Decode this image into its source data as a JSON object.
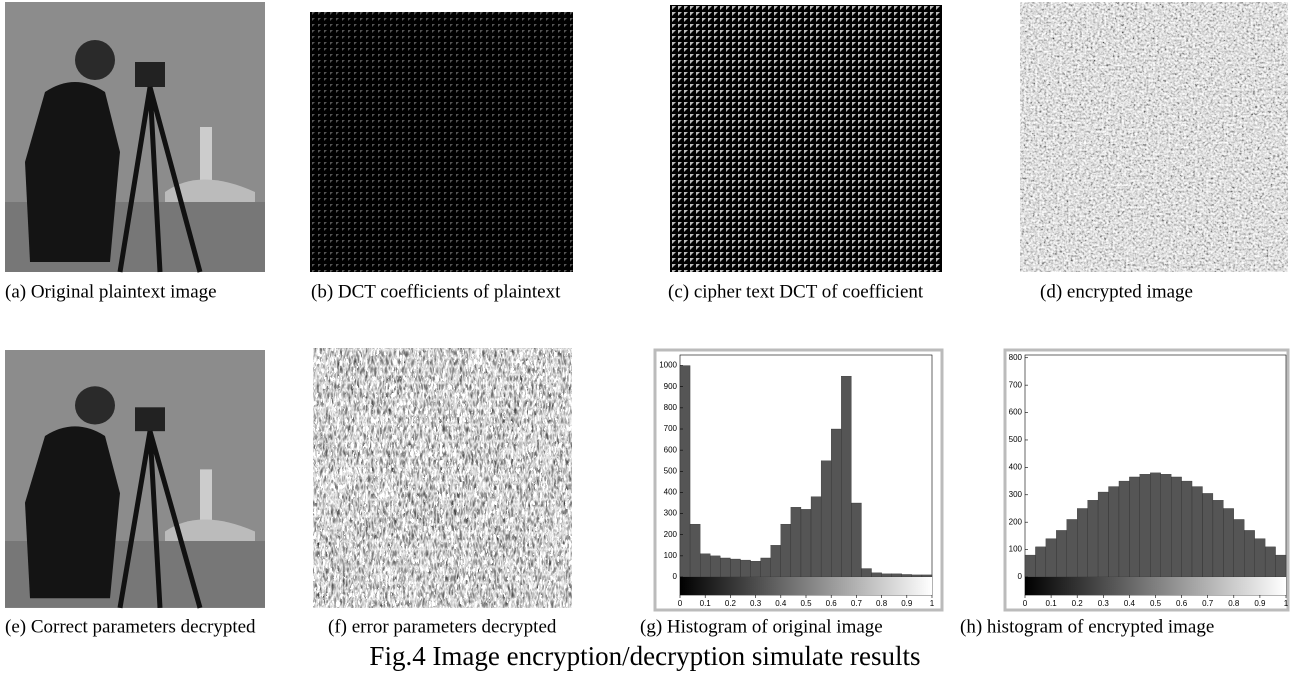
{
  "captions": [
    "(a) Original plaintext image",
    "(b) DCT coefficients of plaintext",
    "(c) cipher text DCT of coefficient",
    "(d) encrypted image",
    "(e) Correct parameters decrypted",
    "(f) error parameters decrypted",
    "(g) Histogram of original image",
    "(h) histogram of encrypted image"
  ],
  "figure_caption": "Fig.4 Image encryption/decryption simulate results",
  "chart_data": [
    {
      "type": "histogram",
      "color": "#555555",
      "bins": [
        0,
        0.04,
        0.08,
        0.12,
        0.16,
        0.2,
        0.24,
        0.28,
        0.32,
        0.36,
        0.4,
        0.44,
        0.48,
        0.52,
        0.56,
        0.6,
        0.64,
        0.68,
        0.72,
        0.76,
        0.8,
        0.84,
        0.88,
        0.92,
        0.96,
        1
      ],
      "values": [
        1000,
        250,
        110,
        100,
        90,
        85,
        80,
        75,
        90,
        150,
        250,
        330,
        320,
        380,
        550,
        700,
        950,
        350,
        40,
        20,
        15,
        15,
        12,
        10,
        10
      ],
      "xlim": [
        0,
        1
      ],
      "xticks": [
        0,
        0.1,
        0.2,
        0.3,
        0.4,
        0.5,
        0.6,
        0.7,
        0.8,
        0.9,
        1
      ],
      "ylim": [
        0,
        1050
      ],
      "yticks": [
        0,
        100,
        200,
        300,
        400,
        500,
        600,
        700,
        800,
        900,
        1000
      ]
    },
    {
      "type": "histogram",
      "color": "#555555",
      "bins": [
        0,
        0.04,
        0.08,
        0.12,
        0.16,
        0.2,
        0.24,
        0.28,
        0.32,
        0.36,
        0.4,
        0.44,
        0.48,
        0.52,
        0.56,
        0.6,
        0.64,
        0.68,
        0.72,
        0.76,
        0.8,
        0.84,
        0.88,
        0.92,
        0.96,
        1
      ],
      "values": [
        80,
        110,
        140,
        170,
        210,
        250,
        280,
        310,
        330,
        350,
        365,
        375,
        380,
        375,
        365,
        350,
        330,
        305,
        280,
        250,
        210,
        170,
        140,
        110,
        80
      ],
      "xlim": [
        0,
        1
      ],
      "xticks": [
        0,
        0.1,
        0.2,
        0.3,
        0.4,
        0.5,
        0.6,
        0.7,
        0.8,
        0.9,
        1
      ],
      "ylim": [
        0,
        810
      ],
      "yticks": [
        0,
        100,
        200,
        300,
        400,
        500,
        600,
        700,
        800
      ]
    }
  ]
}
